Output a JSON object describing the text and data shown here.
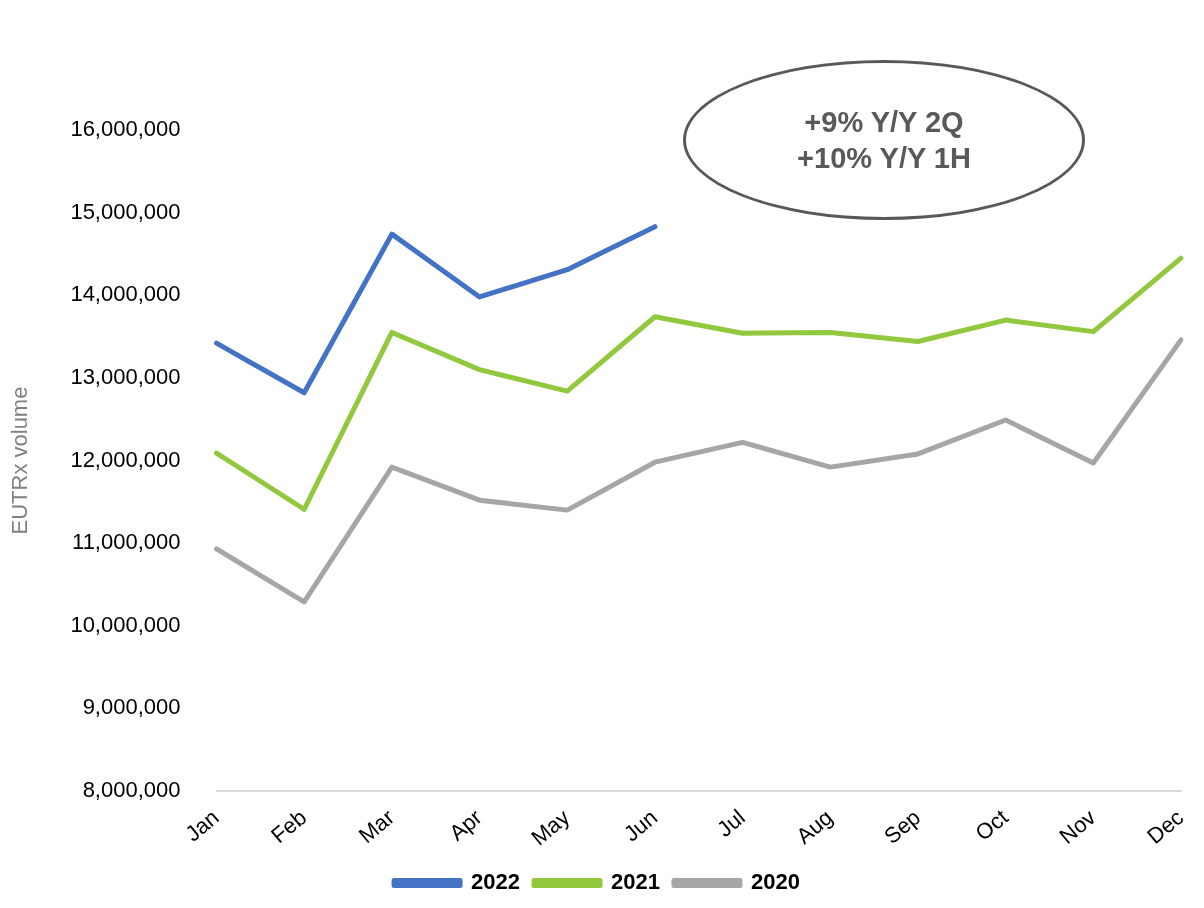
{
  "chart_data": {
    "type": "line",
    "ylabel": "EUTRx volume",
    "categories": [
      "Jan",
      "Feb",
      "Mar",
      "Apr",
      "May",
      "Jun",
      "Jul",
      "Aug",
      "Sep",
      "Oct",
      "Nov",
      "Dec"
    ],
    "series": [
      {
        "name": "2022",
        "color": "#4472c4",
        "values": [
          13420000,
          12820000,
          14740000,
          13980000,
          14310000,
          14830000,
          null,
          null,
          null,
          null,
          null,
          null
        ]
      },
      {
        "name": "2021",
        "color": "#92c83e",
        "values": [
          12090000,
          11410000,
          13550000,
          13100000,
          12840000,
          13740000,
          13540000,
          13550000,
          13440000,
          13700000,
          13560000,
          14450000
        ]
      },
      {
        "name": "2020",
        "color": "#a6a6a6",
        "values": [
          10930000,
          10290000,
          11920000,
          11520000,
          11400000,
          11980000,
          12220000,
          11920000,
          12080000,
          12490000,
          11970000,
          13460000
        ]
      }
    ],
    "ylim": [
      8000000,
      16000000
    ],
    "yticks": [
      {
        "value": 8000000,
        "label": "8,000,000"
      },
      {
        "value": 9000000,
        "label": "9,000,000"
      },
      {
        "value": 10000000,
        "label": "10,000,000"
      },
      {
        "value": 11000000,
        "label": "11,000,000"
      },
      {
        "value": 12000000,
        "label": "12,000,000"
      },
      {
        "value": 13000000,
        "label": "13,000,000"
      },
      {
        "value": 14000000,
        "label": "14,000,000"
      },
      {
        "value": 15000000,
        "label": "15,000,000"
      },
      {
        "value": 16000000,
        "label": "16,000,000"
      }
    ],
    "annotations": [
      "+9% Y/Y 2Q",
      "+10% Y/Y 1H"
    ],
    "grid": false,
    "legend": "bottom",
    "marker": "none",
    "line_style": "solid"
  }
}
